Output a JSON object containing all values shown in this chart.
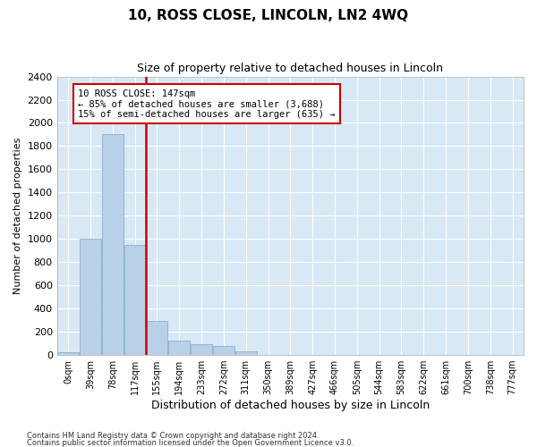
{
  "title": "10, ROSS CLOSE, LINCOLN, LN2 4WQ",
  "subtitle": "Size of property relative to detached houses in Lincoln",
  "xlabel": "Distribution of detached houses by size in Lincoln",
  "ylabel": "Number of detached properties",
  "footnote1": "Contains HM Land Registry data © Crown copyright and database right 2024.",
  "footnote2": "Contains public sector information licensed under the Open Government Licence v3.0.",
  "bar_labels": [
    "0sqm",
    "39sqm",
    "78sqm",
    "117sqm",
    "155sqm",
    "194sqm",
    "233sqm",
    "272sqm",
    "311sqm",
    "350sqm",
    "389sqm",
    "427sqm",
    "466sqm",
    "505sqm",
    "544sqm",
    "583sqm",
    "622sqm",
    "661sqm",
    "700sqm",
    "738sqm",
    "777sqm"
  ],
  "bar_values": [
    20,
    1000,
    1900,
    950,
    290,
    125,
    95,
    80,
    28,
    0,
    0,
    0,
    0,
    0,
    0,
    0,
    0,
    0,
    0,
    0,
    0
  ],
  "bar_color": "#b8d0e8",
  "bar_edge_color": "#7aaac8",
  "vline_color": "#cc0000",
  "annotation_text": "10 ROSS CLOSE: 147sqm\n← 85% of detached houses are smaller (3,688)\n15% of semi-detached houses are larger (635) →",
  "annotation_box_color": "#cc0000",
  "ylim": [
    0,
    2400
  ],
  "yticks": [
    0,
    200,
    400,
    600,
    800,
    1000,
    1200,
    1400,
    1600,
    1800,
    2000,
    2200,
    2400
  ],
  "fig_bg_color": "#ffffff",
  "plot_bg_color": "#d8e8f5",
  "grid_color": "#ffffff",
  "title_fontsize": 11,
  "subtitle_fontsize": 9
}
